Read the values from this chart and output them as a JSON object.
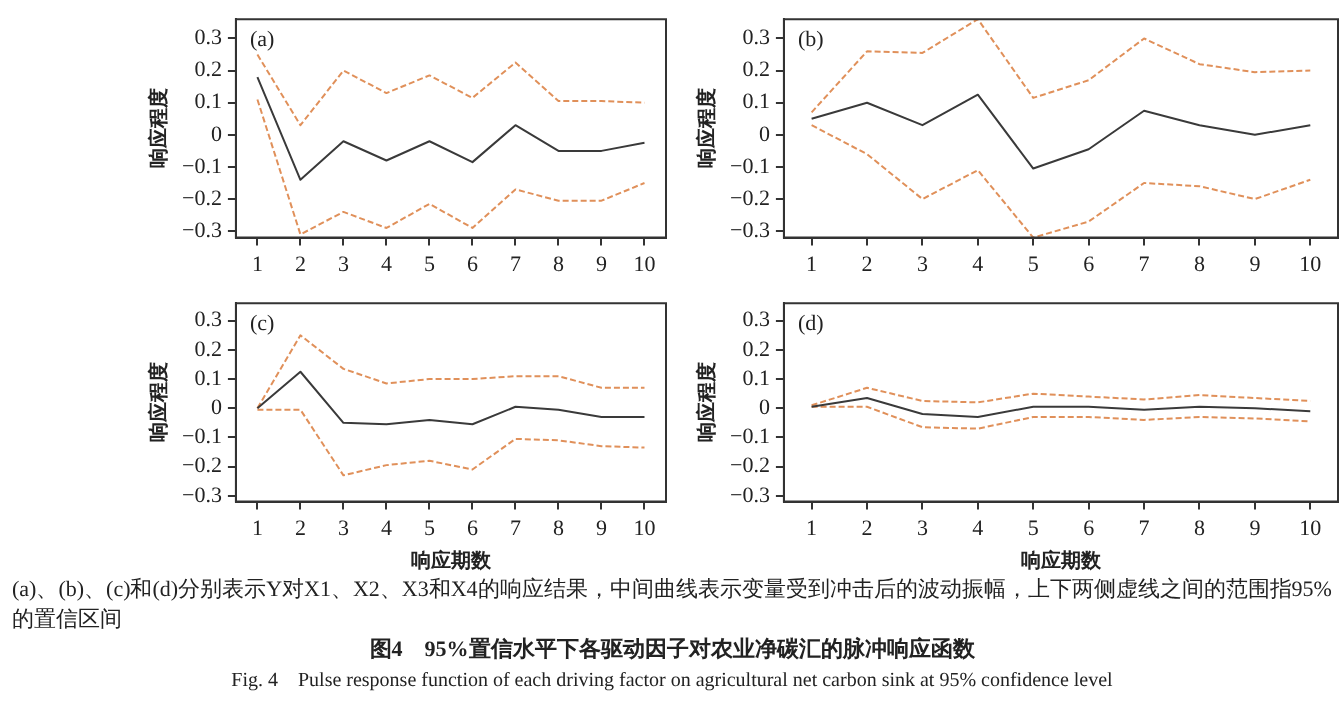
{
  "chart_data": [
    {
      "type": "line",
      "title": "(a)",
      "ylabel": "响应程度",
      "x": [
        1,
        2,
        3,
        4,
        5,
        6,
        7,
        8,
        9,
        10
      ],
      "xlim": [
        0.5,
        10.5
      ],
      "xticks": [
        1,
        2,
        3,
        4,
        5,
        6,
        7,
        8,
        9,
        10
      ],
      "ylim": [
        -0.32,
        0.36
      ],
      "yticks": [
        -0.3,
        -0.2,
        -0.1,
        0,
        0.1,
        0.2,
        0.3
      ],
      "grid": false,
      "legend": false,
      "marker": "none",
      "series": [
        {
          "color": "#3a3a3a",
          "line_style": "solid",
          "values": [
            0.18,
            -0.14,
            -0.02,
            -0.08,
            -0.02,
            -0.085,
            0.03,
            -0.05,
            -0.05,
            -0.025
          ]
        },
        {
          "color": "#e0905a",
          "line_style": "dashed",
          "values": [
            0.25,
            0.03,
            0.2,
            0.13,
            0.185,
            0.115,
            0.225,
            0.105,
            0.105,
            0.1
          ]
        },
        {
          "color": "#e0905a",
          "line_style": "dashed",
          "values": [
            0.11,
            -0.31,
            -0.24,
            -0.29,
            -0.215,
            -0.29,
            -0.17,
            -0.205,
            -0.205,
            -0.15
          ]
        }
      ]
    },
    {
      "type": "line",
      "title": "(b)",
      "ylabel": "响应程度",
      "x": [
        1,
        2,
        3,
        4,
        5,
        6,
        7,
        8,
        9,
        10
      ],
      "xlim": [
        0.5,
        10.5
      ],
      "xticks": [
        1,
        2,
        3,
        4,
        5,
        6,
        7,
        8,
        9,
        10
      ],
      "ylim": [
        -0.32,
        0.36
      ],
      "yticks": [
        -0.3,
        -0.2,
        -0.1,
        0,
        0.1,
        0.2,
        0.3
      ],
      "grid": false,
      "legend": false,
      "marker": "none",
      "series": [
        {
          "color": "#3a3a3a",
          "line_style": "solid",
          "values": [
            0.05,
            0.1,
            0.03,
            0.125,
            -0.105,
            -0.045,
            0.075,
            0.03,
            0,
            0.03
          ]
        },
        {
          "color": "#e0905a",
          "line_style": "dashed",
          "values": [
            0.07,
            0.26,
            0.255,
            0.36,
            0.115,
            0.17,
            0.3,
            0.22,
            0.195,
            0.2
          ]
        },
        {
          "color": "#e0905a",
          "line_style": "dashed",
          "values": [
            0.03,
            -0.06,
            -0.2,
            -0.11,
            -0.32,
            -0.27,
            -0.15,
            -0.16,
            -0.2,
            -0.14
          ]
        }
      ]
    },
    {
      "type": "line",
      "title": "(c)",
      "xlabel": "响应期数",
      "ylabel": "响应程度",
      "x": [
        1,
        2,
        3,
        4,
        5,
        6,
        7,
        8,
        9,
        10
      ],
      "xlim": [
        0.5,
        10.5
      ],
      "xticks": [
        1,
        2,
        3,
        4,
        5,
        6,
        7,
        8,
        9,
        10
      ],
      "ylim": [
        -0.32,
        0.36
      ],
      "yticks": [
        -0.3,
        -0.2,
        -0.1,
        0,
        0.1,
        0.2,
        0.3
      ],
      "grid": false,
      "legend": false,
      "marker": "none",
      "series": [
        {
          "color": "#3a3a3a",
          "line_style": "solid",
          "values": [
            0,
            0.125,
            -0.05,
            -0.055,
            -0.04,
            -0.055,
            0.005,
            -0.005,
            -0.03,
            -0.03
          ]
        },
        {
          "color": "#e0905a",
          "line_style": "dashed",
          "values": [
            0,
            0.25,
            0.135,
            0.085,
            0.1,
            0.1,
            0.11,
            0.11,
            0.07,
            0.07
          ]
        },
        {
          "color": "#e0905a",
          "line_style": "dashed",
          "values": [
            -0.005,
            -0.005,
            -0.23,
            -0.195,
            -0.18,
            -0.21,
            -0.105,
            -0.11,
            -0.13,
            -0.135
          ]
        }
      ]
    },
    {
      "type": "line",
      "title": "(d)",
      "xlabel": "响应期数",
      "ylabel": "响应程度",
      "x": [
        1,
        2,
        3,
        4,
        5,
        6,
        7,
        8,
        9,
        10
      ],
      "xlim": [
        0.5,
        10.5
      ],
      "xticks": [
        1,
        2,
        3,
        4,
        5,
        6,
        7,
        8,
        9,
        10
      ],
      "ylim": [
        -0.32,
        0.36
      ],
      "yticks": [
        -0.3,
        -0.2,
        -0.1,
        0,
        0.1,
        0.2,
        0.3
      ],
      "grid": false,
      "legend": false,
      "marker": "none",
      "series": [
        {
          "color": "#3a3a3a",
          "line_style": "solid",
          "values": [
            0.005,
            0.035,
            -0.02,
            -0.03,
            0.005,
            0.005,
            -0.005,
            0.005,
            0,
            -0.01
          ]
        },
        {
          "color": "#e0905a",
          "line_style": "dashed",
          "values": [
            0.01,
            0.07,
            0.025,
            0.02,
            0.05,
            0.04,
            0.03,
            0.045,
            0.035,
            0.025
          ]
        },
        {
          "color": "#e0905a",
          "line_style": "dashed",
          "values": [
            0.005,
            0.005,
            -0.065,
            -0.07,
            -0.03,
            -0.03,
            -0.04,
            -0.03,
            -0.035,
            -0.045
          ]
        }
      ],
      "annotations": [
        "(a)、(b)、(c)和(d)分别表示Y对X1、X2、X3和X4的响应结果，中间曲线表示变量受到冲击后的波动振幅，上下两侧虚线之间的范围指95%的置信区间",
        "图4　95%置信水平下各驱动因子对农业净碳汇的脉冲响应函数",
        "Fig. 4　Pulse response function of each driving factor on agricultural net carbon sink at 95% confidence level"
      ]
    }
  ]
}
